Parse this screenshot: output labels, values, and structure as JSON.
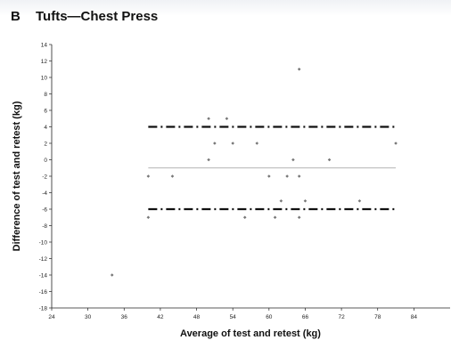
{
  "panel_label": "B",
  "chart_data": {
    "type": "scatter",
    "title": "Tufts—Chest Press",
    "xlabel": "Average of test and retest (kg)",
    "ylabel": "Difference of test and retest (kg)",
    "xlim": [
      24,
      90
    ],
    "ylim": [
      -18,
      14
    ],
    "x_ticks": [
      24,
      30,
      36,
      42,
      48,
      54,
      60,
      66,
      72,
      78,
      84
    ],
    "y_ticks": [
      14,
      12,
      10,
      8,
      6,
      4,
      2,
      0,
      -2,
      -4,
      -6,
      -8,
      -10,
      -12,
      -14,
      -16,
      -18
    ],
    "grid": false,
    "points": [
      {
        "x": 34,
        "y": -14
      },
      {
        "x": 40,
        "y": -2
      },
      {
        "x": 40,
        "y": -7
      },
      {
        "x": 44,
        "y": -2
      },
      {
        "x": 50,
        "y": 5
      },
      {
        "x": 50,
        "y": 0
      },
      {
        "x": 51,
        "y": 2
      },
      {
        "x": 53,
        "y": 5
      },
      {
        "x": 54,
        "y": 2
      },
      {
        "x": 56,
        "y": -7
      },
      {
        "x": 58,
        "y": 2
      },
      {
        "x": 60,
        "y": -2
      },
      {
        "x": 61,
        "y": -7
      },
      {
        "x": 62,
        "y": -5
      },
      {
        "x": 63,
        "y": -2
      },
      {
        "x": 64,
        "y": 0
      },
      {
        "x": 65,
        "y": 11
      },
      {
        "x": 65,
        "y": -2
      },
      {
        "x": 65,
        "y": -7
      },
      {
        "x": 66,
        "y": -5
      },
      {
        "x": 70,
        "y": 0
      },
      {
        "x": 75,
        "y": -5
      },
      {
        "x": 81,
        "y": 2
      }
    ],
    "reference_lines": [
      {
        "y": 4,
        "style": "dash-dot",
        "x_range": [
          40,
          81
        ]
      },
      {
        "y": -1,
        "style": "thin-solid",
        "x_range": [
          40,
          81
        ]
      },
      {
        "y": -6,
        "style": "dash-dot",
        "x_range": [
          40,
          81
        ]
      }
    ],
    "colors": {
      "point": "#777777",
      "limit_line": "#111111",
      "mean_line": "#9a9a9a",
      "axis": "#222222"
    }
  }
}
